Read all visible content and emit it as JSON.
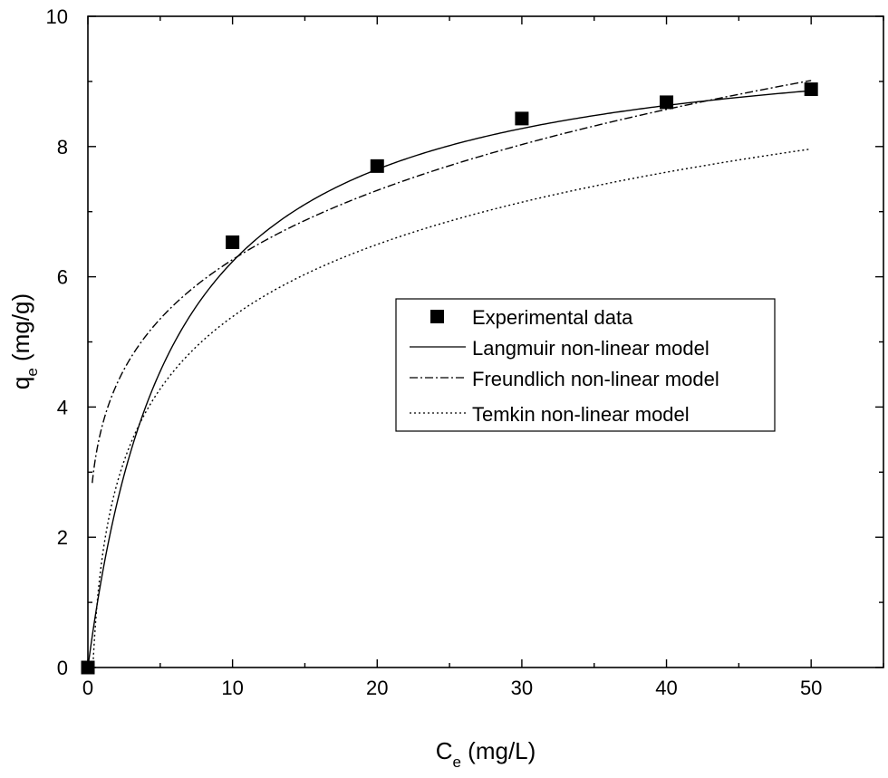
{
  "chart_data": {
    "type": "line",
    "xlabel": {
      "main": "C",
      "sub": "e",
      "unit": " (mg/L)"
    },
    "ylabel": {
      "main": "q",
      "sub": "e",
      "unit": " (mg/g)"
    },
    "xlim": [
      0,
      55
    ],
    "ylim": [
      0,
      10
    ],
    "xticks": [
      0,
      10,
      20,
      30,
      40,
      50
    ],
    "yticks": [
      0,
      2,
      4,
      6,
      8,
      10
    ],
    "grid": false,
    "legend_position": "center-right",
    "series": [
      {
        "name": "Experimental data",
        "kind": "scatter",
        "marker": "square",
        "points": [
          [
            0,
            0
          ],
          [
            10,
            6.53
          ],
          [
            20,
            7.7
          ],
          [
            30,
            8.43
          ],
          [
            40,
            8.68
          ],
          [
            50,
            8.88
          ]
        ]
      },
      {
        "name": "Langmuir non-linear model",
        "kind": "line",
        "style": "solid",
        "model": "langmuir",
        "params": {
          "qm": 9.9,
          "KL": 0.17
        },
        "xrange": [
          0,
          50
        ]
      },
      {
        "name": "Freundlich non-linear model",
        "kind": "line",
        "style": "dashdot",
        "model": "freundlich",
        "params": {
          "KF": 3.72,
          "n": 4.42
        },
        "xrange": [
          0.3,
          50
        ]
      },
      {
        "name": "Temkin non-linear model",
        "kind": "line",
        "style": "dotted",
        "model": "temkin",
        "params": {
          "B": 1.6,
          "A": 2.9
        },
        "xrange": [
          0.3,
          50
        ]
      }
    ]
  }
}
